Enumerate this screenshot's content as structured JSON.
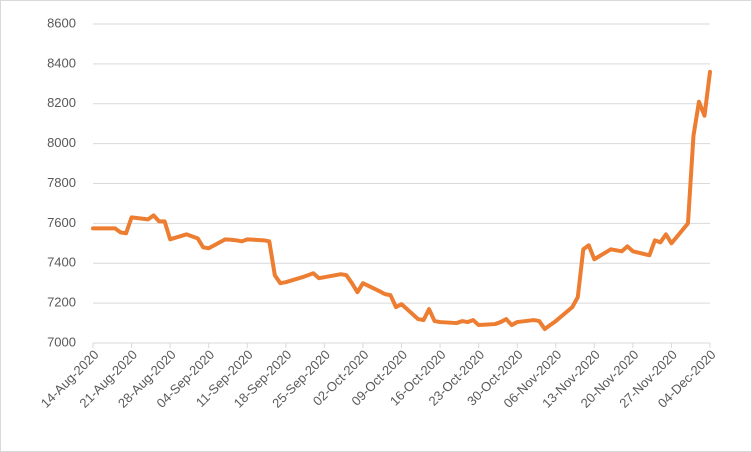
{
  "chart_data": {
    "type": "line",
    "x": [
      "14-Aug-2020",
      "17-Aug-2020",
      "18-Aug-2020",
      "19-Aug-2020",
      "20-Aug-2020",
      "21-Aug-2020",
      "24-Aug-2020",
      "25-Aug-2020",
      "26-Aug-2020",
      "27-Aug-2020",
      "28-Aug-2020",
      "31-Aug-2020",
      "01-Sep-2020",
      "02-Sep-2020",
      "03-Sep-2020",
      "04-Sep-2020",
      "07-Sep-2020",
      "08-Sep-2020",
      "09-Sep-2020",
      "10-Sep-2020",
      "11-Sep-2020",
      "14-Sep-2020",
      "15-Sep-2020",
      "16-Sep-2020",
      "17-Sep-2020",
      "18-Sep-2020",
      "21-Sep-2020",
      "22-Sep-2020",
      "23-Sep-2020",
      "24-Sep-2020",
      "25-Sep-2020",
      "28-Sep-2020",
      "29-Sep-2020",
      "30-Sep-2020",
      "01-Oct-2020",
      "02-Oct-2020",
      "05-Oct-2020",
      "06-Oct-2020",
      "07-Oct-2020",
      "08-Oct-2020",
      "09-Oct-2020",
      "12-Oct-2020",
      "13-Oct-2020",
      "14-Oct-2020",
      "15-Oct-2020",
      "16-Oct-2020",
      "19-Oct-2020",
      "20-Oct-2020",
      "21-Oct-2020",
      "22-Oct-2020",
      "23-Oct-2020",
      "26-Oct-2020",
      "27-Oct-2020",
      "28-Oct-2020",
      "29-Oct-2020",
      "30-Oct-2020",
      "02-Nov-2020",
      "03-Nov-2020",
      "04-Nov-2020",
      "05-Nov-2020",
      "06-Nov-2020",
      "09-Nov-2020",
      "10-Nov-2020",
      "11-Nov-2020",
      "12-Nov-2020",
      "13-Nov-2020",
      "16-Nov-2020",
      "17-Nov-2020",
      "18-Nov-2020",
      "19-Nov-2020",
      "20-Nov-2020",
      "23-Nov-2020",
      "24-Nov-2020",
      "25-Nov-2020",
      "26-Nov-2020",
      "27-Nov-2020",
      "30-Nov-2020",
      "01-Dec-2020",
      "02-Dec-2020",
      "03-Dec-2020",
      "04-Dec-2020"
    ],
    "series": [
      {
        "color": "#ed7d31",
        "values": [
          7575,
          7575,
          7575,
          7555,
          7550,
          7630,
          7620,
          7640,
          7610,
          7610,
          7520,
          7545,
          7535,
          7525,
          7480,
          7475,
          7520,
          7518,
          7515,
          7510,
          7520,
          7515,
          7510,
          7340,
          7300,
          7305,
          7330,
          7340,
          7350,
          7325,
          7330,
          7345,
          7340,
          7300,
          7255,
          7300,
          7260,
          7245,
          7240,
          7180,
          7195,
          7120,
          7115,
          7170,
          7110,
          7105,
          7100,
          7110,
          7105,
          7115,
          7090,
          7095,
          7105,
          7120,
          7090,
          7105,
          7115,
          7110,
          7070,
          7090,
          7110,
          7180,
          7230,
          7470,
          7490,
          7420,
          7470,
          7465,
          7460,
          7485,
          7460,
          7440,
          7515,
          7505,
          7545,
          7500,
          7600,
          8040,
          8210,
          8140,
          8360
        ]
      }
    ],
    "xlim": [
      "14-Aug-2020",
      "04-Dec-2020"
    ],
    "xticks": [
      "14-Aug-2020",
      "21-Aug-2020",
      "28-Aug-2020",
      "04-Sep-2020",
      "11-Sep-2020",
      "18-Sep-2020",
      "25-Sep-2020",
      "02-Oct-2020",
      "09-Oct-2020",
      "16-Oct-2020",
      "23-Oct-2020",
      "30-Oct-2020",
      "06-Nov-2020",
      "13-Nov-2020",
      "20-Nov-2020",
      "27-Nov-2020",
      "04-Dec-2020"
    ],
    "ylim": [
      7000,
      8600
    ],
    "yticks": [
      7000,
      7200,
      7400,
      7600,
      7800,
      8000,
      8200,
      8400,
      8600
    ],
    "grid": true
  }
}
